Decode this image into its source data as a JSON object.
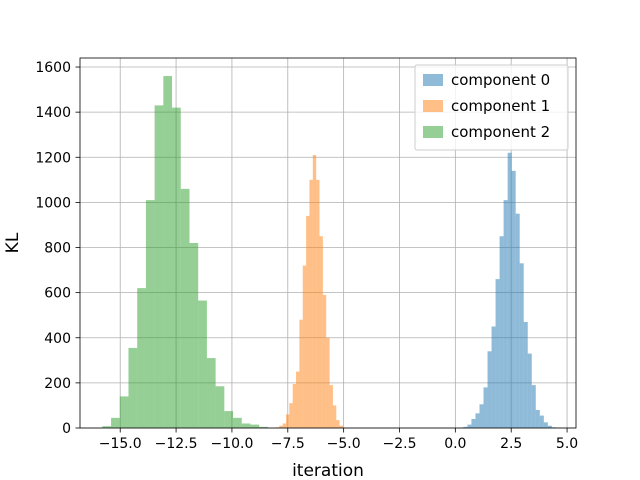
{
  "chart_data": {
    "type": "histogram",
    "title": "",
    "xlabel": "iteration",
    "ylabel": "KL",
    "xlim": [
      -16.8,
      5.4
    ],
    "ylim": [
      0,
      1640
    ],
    "xticks": [
      -15.0,
      -12.5,
      -10.0,
      -7.5,
      -5.0,
      -2.5,
      0.0,
      2.5,
      5.0
    ],
    "xtick_labels": [
      "−15.0",
      "−12.5",
      "−10.0",
      "−7.5",
      "−5.0",
      "−2.5",
      "0.0",
      "2.5",
      "5.0"
    ],
    "yticks": [
      0,
      200,
      400,
      600,
      800,
      1000,
      1200,
      1400,
      1600
    ],
    "ytick_labels": [
      "0",
      "200",
      "400",
      "600",
      "800",
      "1000",
      "1200",
      "1400",
      "1600"
    ],
    "grid": true,
    "legend_position": "top-right",
    "series": [
      {
        "name": "component 0",
        "color": "#1f77b4",
        "alpha": 0.5,
        "bins": [
          [
            0.36,
            0.54,
            5
          ],
          [
            0.54,
            0.72,
            15
          ],
          [
            0.72,
            0.9,
            40
          ],
          [
            0.9,
            1.08,
            65
          ],
          [
            1.08,
            1.26,
            105
          ],
          [
            1.26,
            1.44,
            180
          ],
          [
            1.44,
            1.62,
            340
          ],
          [
            1.62,
            1.8,
            450
          ],
          [
            1.8,
            1.98,
            660
          ],
          [
            1.98,
            2.16,
            850
          ],
          [
            2.16,
            2.34,
            1010
          ],
          [
            2.34,
            2.52,
            1220
          ],
          [
            2.52,
            2.7,
            1140
          ],
          [
            2.7,
            2.88,
            950
          ],
          [
            2.88,
            3.06,
            730
          ],
          [
            3.06,
            3.24,
            470
          ],
          [
            3.24,
            3.42,
            330
          ],
          [
            3.42,
            3.6,
            190
          ],
          [
            3.6,
            3.78,
            80
          ],
          [
            3.78,
            3.96,
            55
          ],
          [
            3.96,
            4.14,
            25
          ],
          [
            4.14,
            4.32,
            10
          ],
          [
            4.32,
            4.5,
            3
          ]
        ]
      },
      {
        "name": "component 1",
        "color": "#ff7f0e",
        "alpha": 0.5,
        "bins": [
          [
            -8.03,
            -7.88,
            3
          ],
          [
            -7.88,
            -7.73,
            10
          ],
          [
            -7.73,
            -7.58,
            20
          ],
          [
            -7.58,
            -7.43,
            60
          ],
          [
            -7.43,
            -7.28,
            110
          ],
          [
            -7.28,
            -7.13,
            195
          ],
          [
            -7.13,
            -6.98,
            250
          ],
          [
            -6.98,
            -6.83,
            480
          ],
          [
            -6.83,
            -6.68,
            720
          ],
          [
            -6.68,
            -6.53,
            940
          ],
          [
            -6.53,
            -6.38,
            1100
          ],
          [
            -6.38,
            -6.23,
            1210
          ],
          [
            -6.23,
            -6.08,
            1100
          ],
          [
            -6.08,
            -5.93,
            850
          ],
          [
            -5.93,
            -5.78,
            590
          ],
          [
            -5.78,
            -5.63,
            400
          ],
          [
            -5.63,
            -5.48,
            190
          ],
          [
            -5.48,
            -5.33,
            100
          ],
          [
            -5.33,
            -5.18,
            35
          ],
          [
            -5.18,
            -5.03,
            10
          ]
        ]
      },
      {
        "name": "component 2",
        "color": "#2ca02c",
        "alpha": 0.5,
        "bins": [
          [
            -15.8,
            -15.41,
            8
          ],
          [
            -15.41,
            -15.02,
            45
          ],
          [
            -15.02,
            -14.63,
            140
          ],
          [
            -14.63,
            -14.24,
            355
          ],
          [
            -14.24,
            -13.85,
            620
          ],
          [
            -13.85,
            -13.46,
            1010
          ],
          [
            -13.46,
            -13.07,
            1430
          ],
          [
            -13.07,
            -12.68,
            1560
          ],
          [
            -12.68,
            -12.29,
            1420
          ],
          [
            -12.29,
            -11.9,
            1060
          ],
          [
            -11.9,
            -11.51,
            820
          ],
          [
            -11.51,
            -11.12,
            565
          ],
          [
            -11.12,
            -10.73,
            310
          ],
          [
            -10.73,
            -10.34,
            185
          ],
          [
            -10.34,
            -9.95,
            75
          ],
          [
            -9.95,
            -9.56,
            45
          ],
          [
            -9.56,
            -9.17,
            20
          ],
          [
            -9.17,
            -8.78,
            15
          ],
          [
            -8.78,
            -8.39,
            5
          ]
        ]
      }
    ]
  }
}
